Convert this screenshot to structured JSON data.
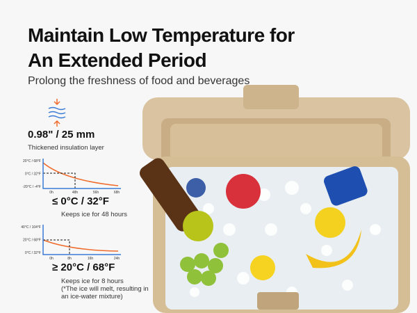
{
  "header": {
    "title_lines": [
      "Maintain Low Temperature for",
      "An Extended Period"
    ],
    "subtitle": "Prolong the freshness of food and beverages"
  },
  "features": [
    {
      "heading": "0.98\" / 25 mm",
      "text": "Thickened insulation layer"
    },
    {
      "heading": "≤ 0°C / 32°F",
      "text": "Keeps ice for 48 hours",
      "y_labels": [
        "20°C / 68°F",
        "0°C / 32°F",
        "-20°C / -4°F"
      ],
      "x_labels": [
        "0h",
        "48h",
        "56h",
        "68h"
      ]
    },
    {
      "heading": "≥ 20°C / 68°F",
      "text": "Keeps ice for 8 hours",
      "note_lines": [
        "(*The ice will melt, resulting in",
        "an ice-water mixture)"
      ],
      "y_labels": [
        "40°C / 104°F",
        "20°C / 68°F",
        "0°C / 32°F"
      ],
      "x_labels": [
        "0h",
        "8h",
        "16h",
        "24h"
      ]
    }
  ]
}
